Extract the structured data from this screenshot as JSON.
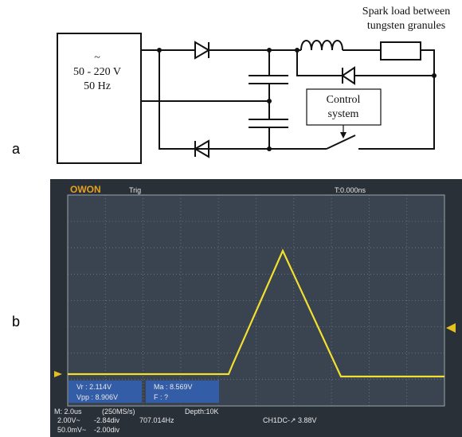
{
  "labels": {
    "a": "a",
    "b": "b"
  },
  "source": {
    "symbol": "~",
    "voltage": "50 - 220 V",
    "frequency": "50 Hz"
  },
  "load": {
    "line1": "Spark load between",
    "line2": "tungsten granules"
  },
  "control": {
    "line1": "Control",
    "line2": "system"
  },
  "scope": {
    "brand": "OWON",
    "trig": "Trig",
    "time": "T:0.000ns",
    "measure": {
      "vr": "Vr : 2.114V",
      "ma": "Ma : 8.569V",
      "vpp": "Vpp : 8.906V",
      "f": "F : ?"
    },
    "status": {
      "timebase": "M: 2.0us",
      "rate": "(250MS/s)",
      "depth": "Depth:10K",
      "ch1": "2.00V~",
      "ch1_pos": "-2.84div",
      "freq": "707.014Hz",
      "trigger": "CH1DC-↗ 3.88V",
      "ch2": "50.0mV~",
      "ch2_pos": "-2.00div"
    }
  }
}
